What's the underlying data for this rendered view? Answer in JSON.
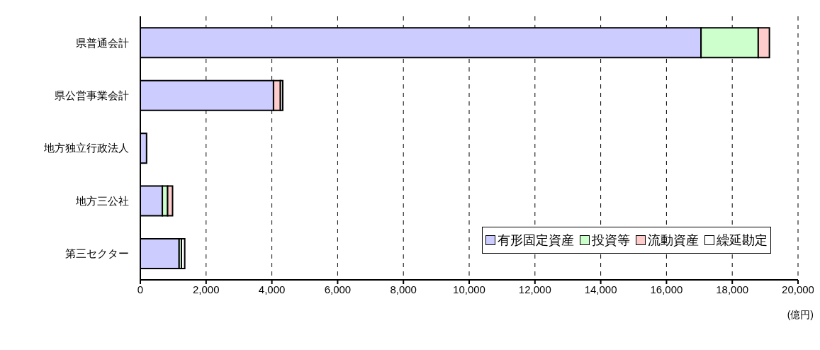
{
  "chart_data": {
    "type": "bar",
    "orientation": "horizontal",
    "stacked": true,
    "categories": [
      "県普通会計",
      "県公営事業会計",
      "地方独立行政法人",
      "地方三公社",
      "第三セクター"
    ],
    "series": [
      {
        "name": "有形固定資産",
        "color": "#ccccff",
        "values": [
          17050,
          4050,
          190,
          670,
          1180
        ]
      },
      {
        "name": "投資等",
        "color": "#ccffcc",
        "values": [
          1740,
          0,
          0,
          160,
          70
        ]
      },
      {
        "name": "流動資産",
        "color": "#ffcccc",
        "values": [
          340,
          210,
          0,
          150,
          0
        ]
      },
      {
        "name": "繰延勘定",
        "color": "#ffffff",
        "values": [
          0,
          70,
          0,
          0,
          100
        ]
      }
    ],
    "xlim": [
      0,
      20000
    ],
    "xticks": [
      0,
      {
        "value": 2000,
        "label": "2,000"
      },
      {
        "value": 4000,
        "label": "4,000"
      },
      {
        "value": 6000,
        "label": "6,000"
      },
      {
        "value": 8000,
        "label": "8,000"
      },
      {
        "value": 10000,
        "label": "10,000"
      },
      {
        "value": 12000,
        "label": "12,000"
      },
      {
        "value": 14000,
        "label": "14,000"
      },
      {
        "value": 16000,
        "label": "16,000"
      },
      {
        "value": 18000,
        "label": "18,000"
      },
      {
        "value": 20000,
        "label": "20,000"
      }
    ],
    "xlabel": "(億円)",
    "grid": "x",
    "legend": "bottom right"
  }
}
